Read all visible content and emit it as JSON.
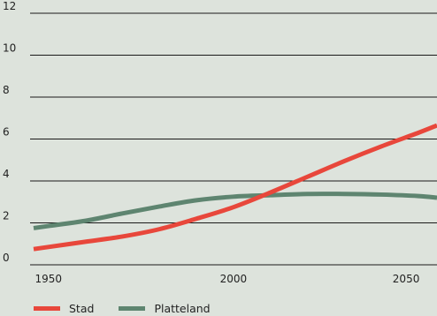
{
  "chart_data": {
    "type": "line",
    "title": "",
    "xlabel": "",
    "ylabel": "",
    "xlim": [
      1946,
      2055
    ],
    "ylim": [
      0,
      12
    ],
    "x_ticks": [
      1950,
      2000,
      2050
    ],
    "y_ticks": [
      0,
      2,
      4,
      6,
      8,
      10,
      12
    ],
    "grid": true,
    "legend": "bottom-left",
    "series": [
      {
        "name": "Stad",
        "color": "#e8473b",
        "x": [
          1946,
          1950,
          1960,
          1970,
          1980,
          1990,
          2000,
          2010,
          2020,
          2030,
          2040,
          2050,
          2055
        ],
        "y": [
          0.75,
          0.85,
          1.1,
          1.35,
          1.7,
          2.2,
          2.75,
          3.45,
          4.2,
          4.95,
          5.65,
          6.3,
          6.65
        ]
      },
      {
        "name": "Platteland",
        "color": "#5e8570",
        "x": [
          1946,
          1950,
          1960,
          1970,
          1980,
          1990,
          2000,
          2010,
          2020,
          2030,
          2040,
          2050,
          2055
        ],
        "y": [
          1.75,
          1.85,
          2.1,
          2.45,
          2.78,
          3.08,
          3.25,
          3.32,
          3.38,
          3.38,
          3.35,
          3.28,
          3.2
        ]
      }
    ]
  }
}
